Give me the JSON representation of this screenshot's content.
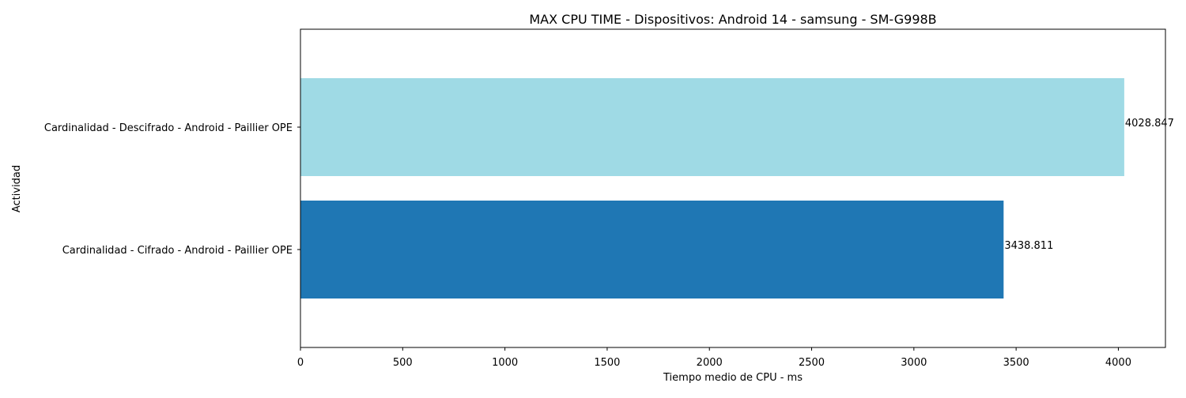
{
  "chart_data": {
    "type": "bar",
    "orientation": "horizontal",
    "title": "MAX CPU TIME - Dispositivos: Android 14 - samsung - SM-G998B",
    "xlabel": "Tiempo medio de CPU - ms",
    "ylabel": "Actividad",
    "categories": [
      "Cardinalidad - Descifrado - Android - Paillier OPE",
      "Cardinalidad - Cifrado - Android - Paillier OPE"
    ],
    "values": [
      4028.847,
      3438.811
    ],
    "data_labels": [
      "4028.847",
      "3438.811"
    ],
    "bar_colors": [
      "#9fdae5",
      "#1f77b4"
    ],
    "xlim": [
      0,
      4230.29
    ],
    "xticks": [
      0,
      500,
      1000,
      1500,
      2000,
      2500,
      3000,
      3500,
      4000
    ],
    "xtick_labels": [
      "0",
      "500",
      "1000",
      "1500",
      "2000",
      "2500",
      "3000",
      "3500",
      "4000"
    ],
    "grid": false,
    "legend": "none"
  }
}
